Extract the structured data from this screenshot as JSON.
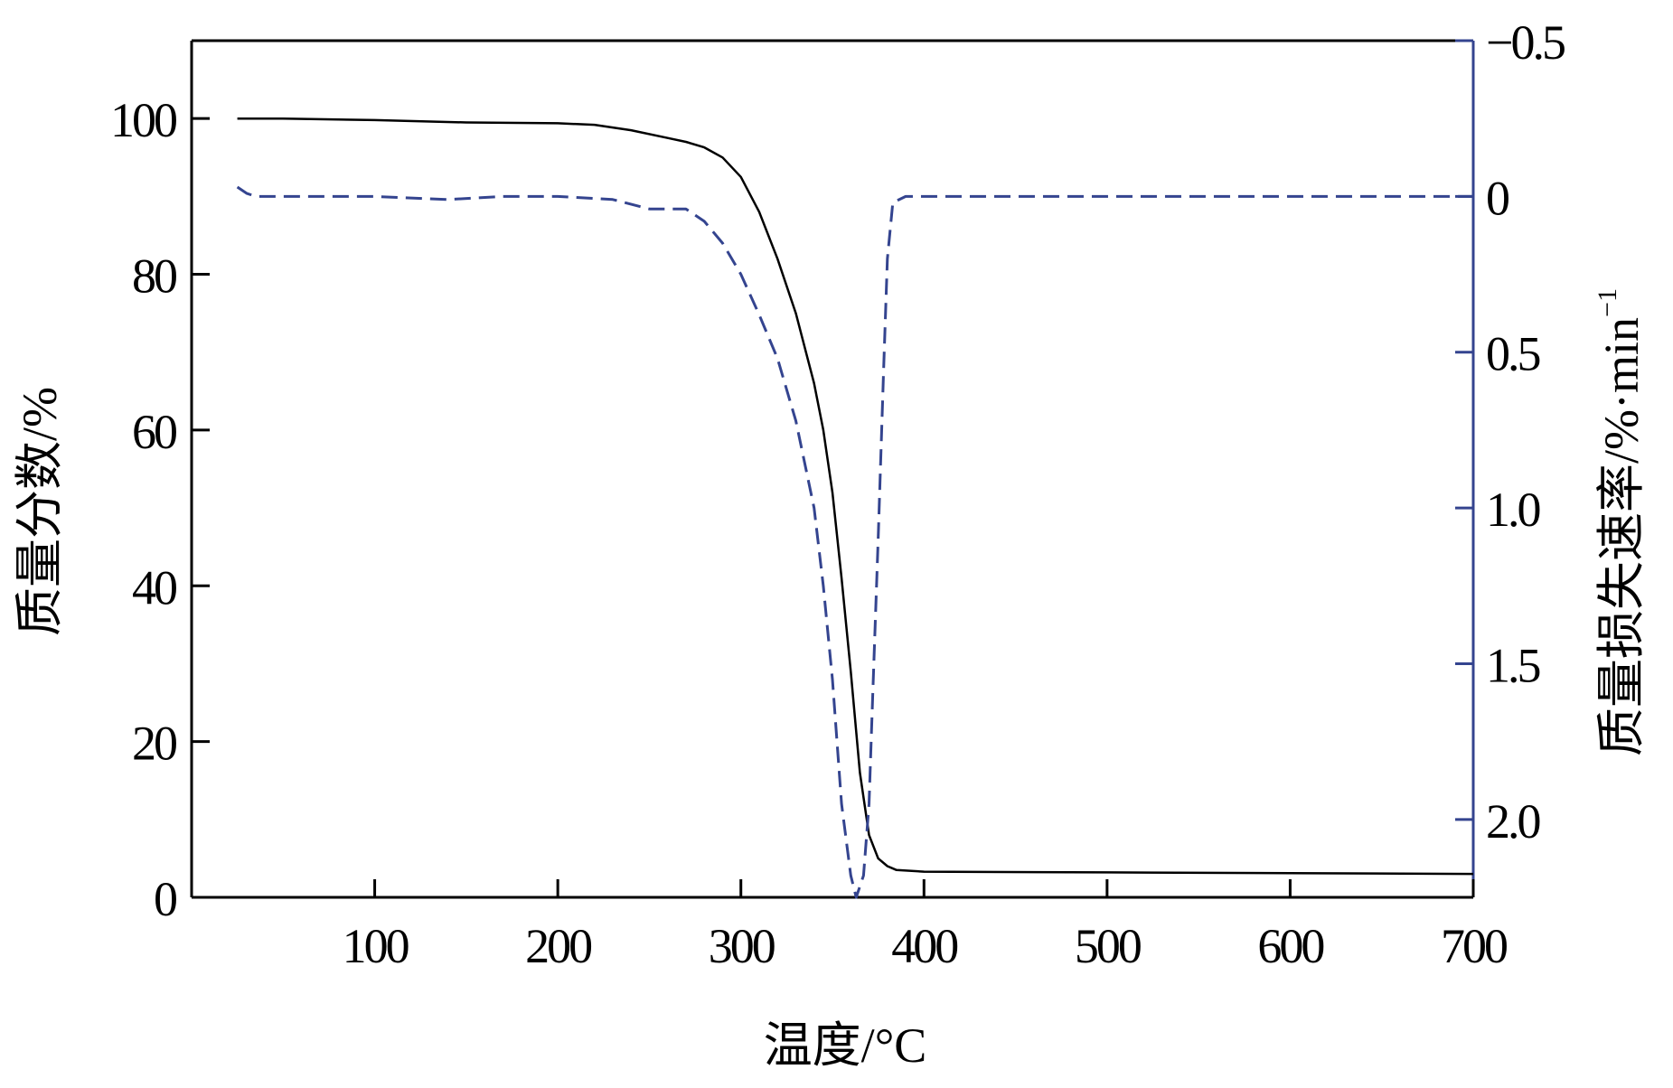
{
  "chart_data": {
    "type": "line",
    "title": "",
    "xlabel": "温度/°C",
    "ylabel": "质量分数/%",
    "y2label_main": "质量损失速率/%·min",
    "y2label_sup": "−1",
    "xlim": [
      0,
      700
    ],
    "ylim": [
      0,
      110
    ],
    "y2lim": [
      -0.5,
      2.25
    ],
    "y2_inverted": true,
    "x_ticks": [
      "100",
      "200",
      "300",
      "400",
      "500",
      "600",
      "700"
    ],
    "y_ticks": [
      "0",
      "20",
      "40",
      "60",
      "80",
      "100"
    ],
    "y2_ticks": [
      "−0.5",
      "0",
      "0.5",
      "1.0",
      "1.5",
      "2.0"
    ],
    "grid": false,
    "series": [
      {
        "axis": "left",
        "line_style": "solid",
        "color": "#000000",
        "x": [
          25,
          50,
          100,
          150,
          200,
          220,
          240,
          260,
          270,
          280,
          290,
          300,
          310,
          320,
          330,
          340,
          345,
          350,
          355,
          360,
          365,
          370,
          375,
          380,
          385,
          400,
          500,
          600,
          700
        ],
        "y": [
          100,
          100,
          99.8,
          99.5,
          99.4,
          99.2,
          98.5,
          97.5,
          97,
          96.3,
          95,
          92.5,
          88,
          82,
          75,
          66,
          60,
          52,
          41,
          29,
          16,
          8,
          5,
          4,
          3.5,
          3.3,
          3.2,
          3.1,
          3
        ]
      },
      {
        "axis": "right",
        "line_style": "dashed",
        "color": "#34448f",
        "x": [
          25,
          30,
          35,
          50,
          100,
          140,
          170,
          200,
          230,
          250,
          260,
          270,
          280,
          290,
          300,
          310,
          320,
          330,
          340,
          345,
          350,
          355,
          360,
          363,
          367,
          370,
          372,
          375,
          378,
          380,
          383,
          390,
          400,
          500,
          600,
          700
        ],
        "y": [
          -0.03,
          -0.01,
          0,
          0,
          0,
          0.01,
          0,
          0,
          0.01,
          0.04,
          0.04,
          0.04,
          0.08,
          0.15,
          0.25,
          0.38,
          0.52,
          0.72,
          1.0,
          1.25,
          1.55,
          1.95,
          2.18,
          2.25,
          2.18,
          1.95,
          1.6,
          1.1,
          0.55,
          0.2,
          0.02,
          0,
          0,
          0,
          0,
          0
        ]
      }
    ]
  }
}
